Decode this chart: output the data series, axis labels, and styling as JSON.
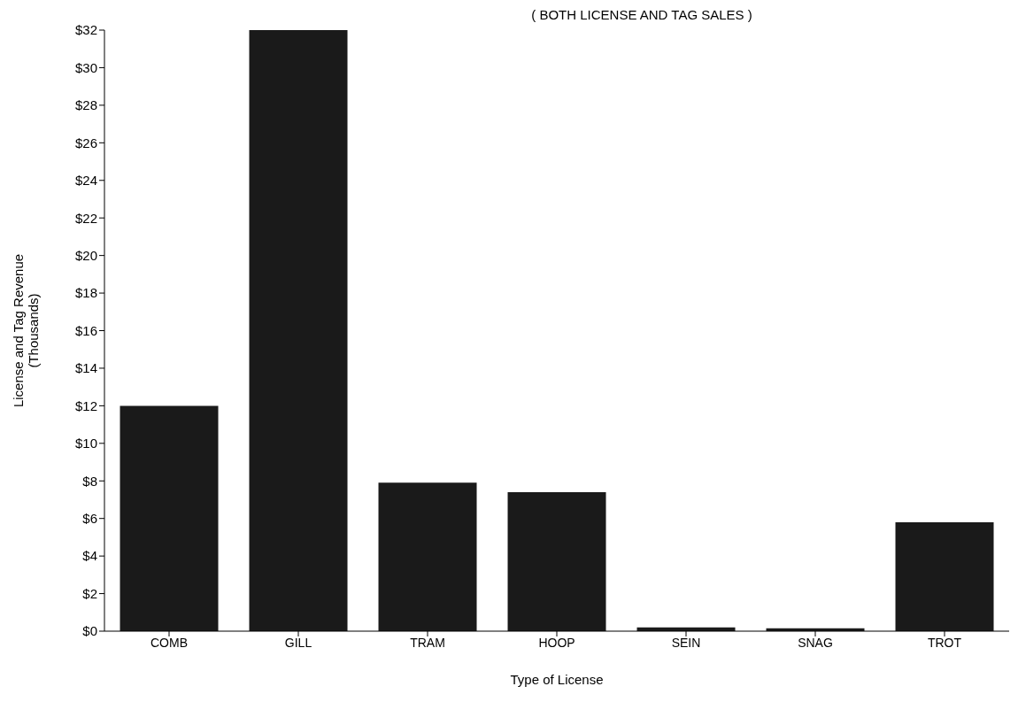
{
  "chart_data": {
    "type": "bar",
    "title": "( BOTH LICENSE AND TAG SALES )",
    "xlabel": "Type of License",
    "ylabel": "License and Tag Revenue\n(Thousands)",
    "categories": [
      "COMB",
      "GILL",
      "TRAM",
      "HOOP",
      "SEIN",
      "SNAG",
      "TROT"
    ],
    "values": [
      12,
      32,
      7.9,
      7.4,
      0.2,
      0.15,
      5.8
    ],
    "color": "#1a1a1a",
    "ylim": [
      0,
      32
    ],
    "yticks": [
      {
        "value": 0,
        "label": "$0"
      },
      {
        "value": 2,
        "label": "$2"
      },
      {
        "value": 4,
        "label": "$4"
      },
      {
        "value": 6,
        "label": "$6"
      },
      {
        "value": 8,
        "label": "$8"
      },
      {
        "value": 10,
        "label": "$10"
      },
      {
        "value": 12,
        "label": "$12"
      },
      {
        "value": 14,
        "label": "$14"
      },
      {
        "value": 16,
        "label": "$16"
      },
      {
        "value": 18,
        "label": "$18"
      },
      {
        "value": 20,
        "label": "$20"
      },
      {
        "value": 22,
        "label": "$22"
      },
      {
        "value": 24,
        "label": "$24"
      },
      {
        "value": 26,
        "label": "$26"
      },
      {
        "value": 28,
        "label": "$28"
      },
      {
        "value": 30,
        "label": "$30"
      },
      {
        "value": 32,
        "label": "$32"
      }
    ],
    "grid": false
  }
}
